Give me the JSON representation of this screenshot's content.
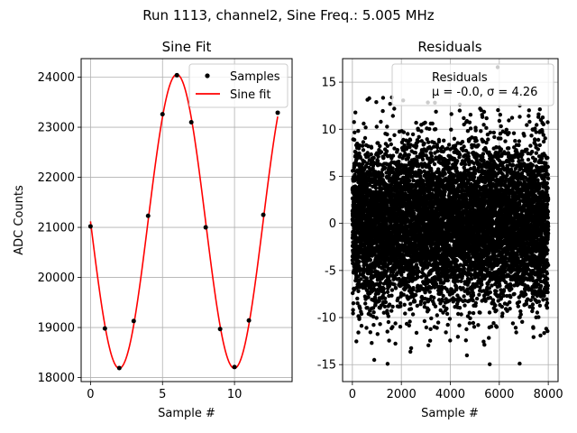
{
  "suptitle": "Run 1113, channel2, Sine Freq.: 5.005 MHz",
  "colors": {
    "samples": "#000000",
    "fit": "#ff0000",
    "grid": "#b0b0b0",
    "residuals": "#000000"
  },
  "chart_data": [
    {
      "type": "line",
      "title": "Sine Fit",
      "xlabel": "Sample #",
      "ylabel": "ADC Counts",
      "xlim": [
        -0.65,
        14.0
      ],
      "ylim": [
        17920,
        24370
      ],
      "xticks": [
        0,
        5,
        10
      ],
      "yticks": [
        18000,
        19000,
        20000,
        21000,
        22000,
        23000,
        24000
      ],
      "grid": true,
      "legend_position": "upper right",
      "series": [
        {
          "name": "Samples",
          "style": "points",
          "x": [
            0,
            1,
            2,
            3,
            4,
            5,
            6,
            7,
            8,
            9,
            10,
            11,
            12,
            13
          ],
          "y": [
            21020,
            18980,
            18190,
            19130,
            21230,
            23260,
            24040,
            23100,
            21000,
            18970,
            18210,
            19140,
            21250,
            23290
          ]
        },
        {
          "name": "Sine fit",
          "style": "line",
          "model": {
            "mean": 21120,
            "amplitude": 2935,
            "period": 7.993,
            "phase_deg": 180,
            "x_range": [
              0,
              13
            ]
          }
        }
      ]
    },
    {
      "type": "scatter",
      "title": "Residuals",
      "xlabel": "Sample #",
      "ylabel": "",
      "xlim": [
        -400,
        8400
      ],
      "ylim": [
        -16.8,
        17.5
      ],
      "xticks": [
        0,
        2000,
        4000,
        6000,
        8000
      ],
      "yticks": [
        -15,
        -10,
        -5,
        0,
        5,
        10,
        15
      ],
      "grid": true,
      "legend_position": "upper right",
      "series": [
        {
          "name": "Residuals",
          "legend_lines": [
            "Residuals",
            "μ = -0.0, σ = 4.26"
          ],
          "distribution": {
            "count": 8192,
            "mean": 0.0,
            "std": 4.26,
            "x_range": [
              0,
              8000
            ]
          }
        }
      ]
    }
  ]
}
